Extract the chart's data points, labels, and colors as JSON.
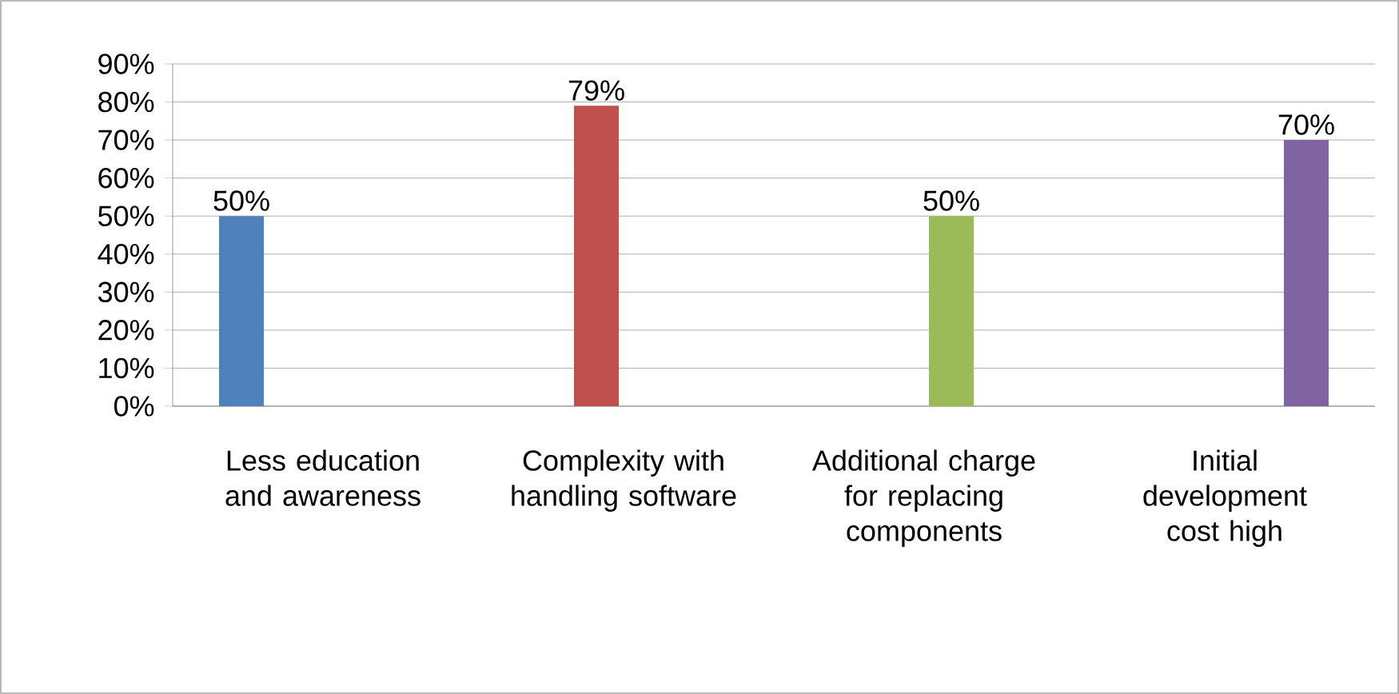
{
  "chart_data": {
    "type": "bar",
    "categories": [
      "Less education and awareness",
      "Complexity with handling software",
      "Additional charge for replacing components",
      "Initial development cost high"
    ],
    "series": [
      {
        "color": "#4f81bd",
        "values": [
          50,
          null,
          null,
          null
        ],
        "value_labels": [
          "50%",
          null,
          null,
          null
        ]
      },
      {
        "color": "#c0504d",
        "values": [
          null,
          79,
          null,
          null
        ],
        "value_labels": [
          null,
          "79%",
          null,
          null
        ]
      },
      {
        "color": "#9bbb59",
        "values": [
          null,
          null,
          50,
          null
        ],
        "value_labels": [
          null,
          null,
          "50%",
          null
        ]
      },
      {
        "color": "#8064a2",
        "values": [
          null,
          null,
          null,
          70
        ],
        "value_labels": [
          null,
          null,
          null,
          "70%"
        ]
      }
    ],
    "ylim": [
      0,
      90
    ],
    "yticks": [
      {
        "value": 0,
        "label": "0%"
      },
      {
        "value": 10,
        "label": "10%"
      },
      {
        "value": 20,
        "label": "20%"
      },
      {
        "value": 30,
        "label": "30%"
      },
      {
        "value": 40,
        "label": "40%"
      },
      {
        "value": 50,
        "label": "50%"
      },
      {
        "value": 60,
        "label": "60%"
      },
      {
        "value": 70,
        "label": "70%"
      },
      {
        "value": 80,
        "label": "80%"
      },
      {
        "value": 90,
        "label": "90%"
      }
    ],
    "grid": "y"
  }
}
